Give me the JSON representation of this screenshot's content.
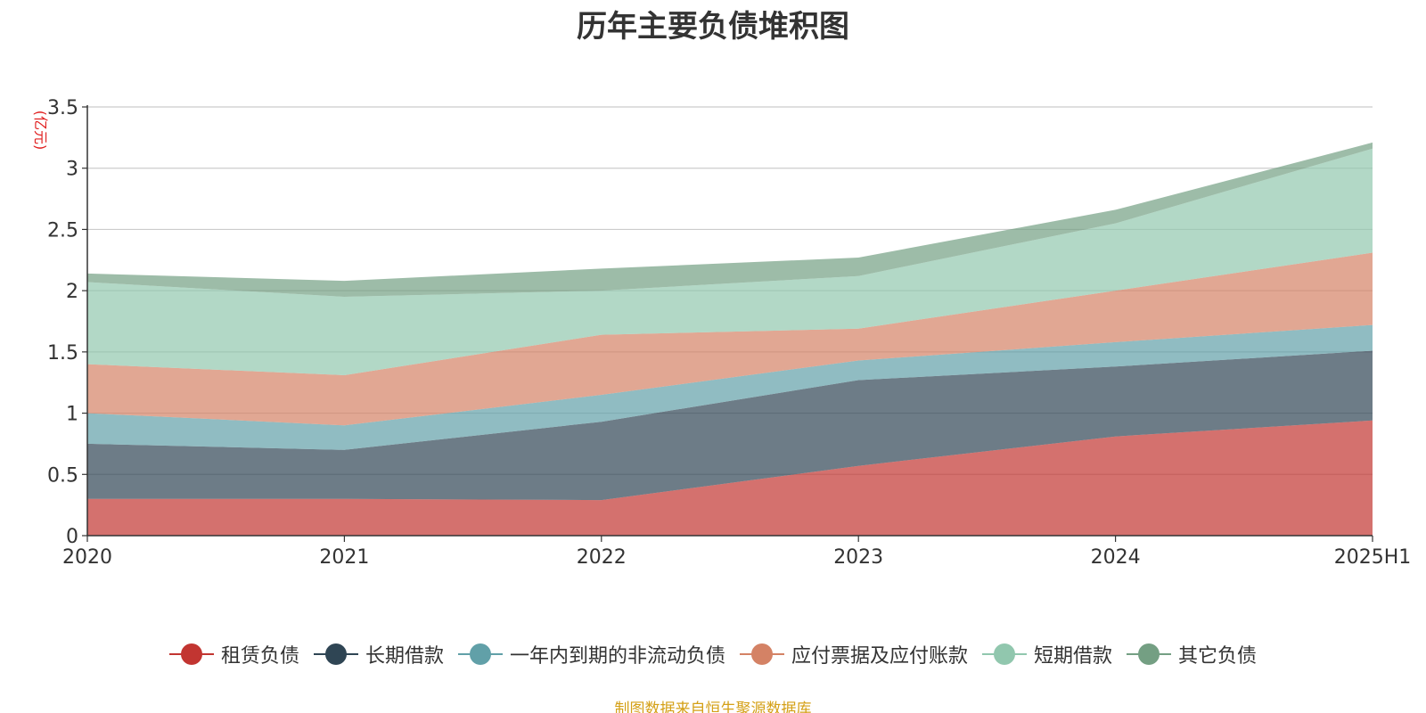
{
  "chart_data": {
    "type": "area",
    "stacked": true,
    "title": "历年主要负债堆积图",
    "ylabel": "(亿元)",
    "xlabel": "",
    "categories": [
      "2020",
      "2021",
      "2022",
      "2023",
      "2024",
      "2025H1"
    ],
    "ylim": [
      0,
      3.5
    ],
    "yticks": [
      "0",
      "0.5",
      "1",
      "1.5",
      "2",
      "2.5",
      "3",
      "3.5"
    ],
    "grid": true,
    "legend_position": "bottom",
    "series": [
      {
        "name": "租赁负债",
        "color": "#c23531",
        "values": [
          0.3,
          0.3,
          0.29,
          0.57,
          0.81,
          0.94
        ]
      },
      {
        "name": "长期借款",
        "color": "#2f4554",
        "values": [
          0.45,
          0.4,
          0.64,
          0.7,
          0.57,
          0.57
        ]
      },
      {
        "name": "一年内到期的非流动负债",
        "color": "#61a0a8",
        "values": [
          0.25,
          0.2,
          0.22,
          0.16,
          0.2,
          0.21
        ]
      },
      {
        "name": "应付票据及应付账款",
        "color": "#d48265",
        "values": [
          0.4,
          0.41,
          0.49,
          0.26,
          0.42,
          0.59
        ]
      },
      {
        "name": "短期借款",
        "color": "#91c7ae",
        "values": [
          0.67,
          0.64,
          0.36,
          0.43,
          0.55,
          0.85
        ]
      },
      {
        "name": "其它负债",
        "color": "#749f83",
        "values": [
          0.07,
          0.13,
          0.18,
          0.15,
          0.11,
          0.05
        ]
      }
    ]
  },
  "footer": {
    "source": "制图数据来自恒生聚源数据库"
  }
}
